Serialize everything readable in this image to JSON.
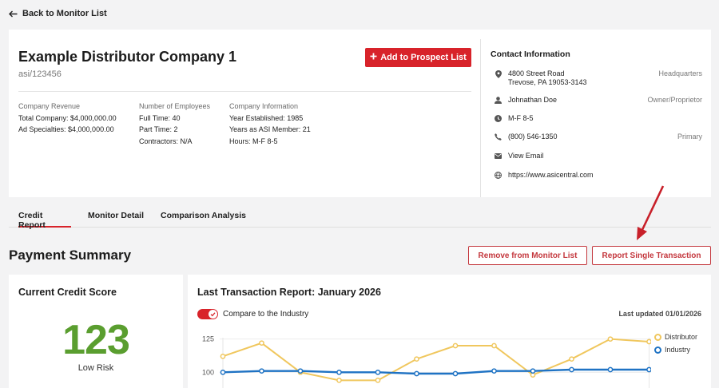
{
  "back": {
    "label": "Back to Monitor List"
  },
  "company": {
    "name": "Example Distributor Company 1",
    "asi": "asi/123456",
    "add_button": "Add to Prospect List",
    "revenue": {
      "heading": "Company Revenue",
      "total": "Total Company: $4,000,000.00",
      "ad": "Ad Specialties: $4,000,000.00"
    },
    "employees": {
      "heading": "Number of Employees",
      "full": "Full Time: 40",
      "part": "Part Time: 2",
      "contractors": "Contractors: N/A"
    },
    "info": {
      "heading": "Company Information",
      "established": "Year Established: 1985",
      "member": "Years as ASI Member: 21",
      "hours": "Hours: M-F 8-5"
    }
  },
  "contact": {
    "title": "Contact Information",
    "address_line1": "4800 Street Road",
    "address_line2": "Trevose, PA 19053-3143",
    "address_tag": "Headquarters",
    "person": "Johnathan Doe",
    "person_tag": "Owner/Proprietor",
    "hours": "M-F 8-5",
    "phone": "(800) 546-1350",
    "phone_tag": "Primary",
    "email": "View Email",
    "website": "https://www.asicentral.com"
  },
  "tabs": [
    {
      "label": "Credit Report"
    },
    {
      "label": "Monitor Detail"
    },
    {
      "label": "Comparison Analysis"
    }
  ],
  "payment": {
    "title": "Payment Summary",
    "remove_button": "Remove from Monitor List",
    "report_button": "Report Single Transaction"
  },
  "score": {
    "title": "Current Credit Score",
    "value": "123",
    "risk": "Low Risk"
  },
  "transaction": {
    "title": "Last Transaction Report: January 2026",
    "toggle_label": "Compare to the Industry",
    "toggle_on": true,
    "updated": "Last updated 01/01/2026"
  },
  "colors": {
    "accent": "#d8232a",
    "score": "#5a9e2f",
    "distributor": "#f0c75e",
    "industry": "#1f73c4"
  },
  "chart_data": {
    "type": "line",
    "y_ticks": [
      "125",
      "100"
    ],
    "ylim": [
      75,
      135
    ],
    "series": [
      {
        "name": "Distributor",
        "values": [
          112,
          122,
          100,
          94,
          94,
          110,
          120,
          120,
          98,
          110,
          125,
          123
        ]
      },
      {
        "name": "Industry",
        "values": [
          100,
          101,
          101,
          100,
          100,
          99,
          99,
          101,
          101,
          102,
          102,
          102
        ]
      }
    ]
  }
}
